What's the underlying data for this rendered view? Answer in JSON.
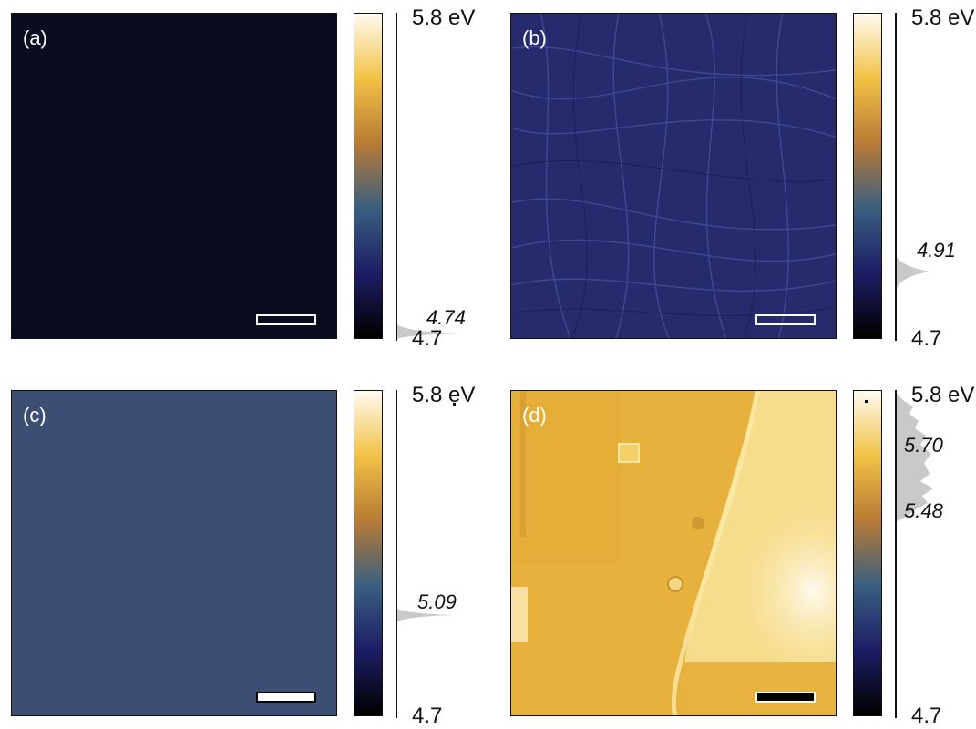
{
  "colorbar": {
    "max_label": "5.8 eV",
    "min_label": "4.7",
    "gradient": [
      "#000000",
      "#1d1d66",
      "#3a5f80",
      "#b87a35",
      "#f2c245",
      "#fffbf0"
    ]
  },
  "panels": [
    {
      "id": "a",
      "label": "(a)",
      "map_color": "#0a0d1f",
      "scalebar_color": "#ffffff",
      "peak_labels": [
        "4.74"
      ]
    },
    {
      "id": "b",
      "label": "(b)",
      "map_color": "#262b6e",
      "scalebar_color": "#ffffff",
      "peak_labels": [
        "4.91"
      ]
    },
    {
      "id": "c",
      "label": "(c)",
      "map_color": "#3c4e74",
      "scalebar_color": "#000000",
      "peak_labels": [
        "5.09"
      ]
    },
    {
      "id": "d",
      "label": "(d)",
      "map_color": "#e8b540",
      "scalebar_color": "#000000",
      "peak_labels": [
        "5.70",
        "5.48"
      ]
    }
  ]
}
